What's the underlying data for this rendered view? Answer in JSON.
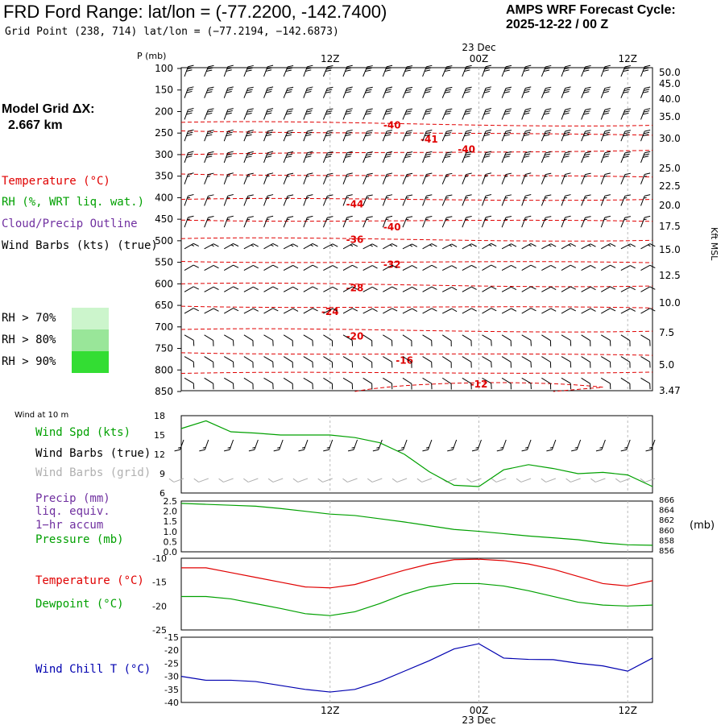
{
  "header": {
    "title": "FRD Ford Range:  lat/lon = (-77.2200, -142.7400)",
    "grid_point": "Grid Point (238, 714) lat/lon = (−77.2194, −142.6873)",
    "cycle_label": "AMPS WRF Forecast Cycle:",
    "cycle_value": "2025-12-22 / 00  Z"
  },
  "model_grid": {
    "label": "Model Grid ΔX:",
    "value": "2.667 km"
  },
  "legend_left": {
    "temperature": "Temperature (°C)",
    "rh": "RH (%, WRT liq. wat.)",
    "cloud": "Cloud/Precip Outline",
    "wind": "Wind Barbs (kts) (true)",
    "rh70": "RH > 70%",
    "rh80": "RH > 80%",
    "rh90": "RH > 90%"
  },
  "colors": {
    "temperature": "#e00000",
    "rh": "#00a000",
    "cloud": "#7030a0",
    "wind": "#000000",
    "grid_wind": "#b0b0b0",
    "wind_chill": "#0000b0",
    "rh70": "#ccf5cc",
    "rh80": "#99e699",
    "rh90": "#33dd33"
  },
  "time_axis": {
    "ticks": [
      "12Z",
      "00Z",
      "12Z"
    ],
    "date_label": "23 Dec"
  },
  "chart_data": [
    {
      "type": "line",
      "name": "cross-section",
      "ylabel": "P (mb)",
      "y2label": "Kft MSL",
      "pressure_ticks": [
        "100",
        "150",
        "200",
        "250",
        "300",
        "350",
        "400",
        "450",
        "500",
        "550",
        "600",
        "650",
        "700",
        "750",
        "800",
        "850"
      ],
      "height_ticks": [
        "50.0",
        "45.0",
        "40.0",
        "35.0",
        "30.0",
        "25.0",
        "22.5",
        "20.0",
        "17.5",
        "15.0",
        "12.5",
        "10.0",
        "7.5",
        "5.0",
        "3.47"
      ],
      "pressure_levels": [
        100,
        150,
        200,
        250,
        300,
        350,
        400,
        450,
        500,
        550,
        600,
        650,
        700,
        750,
        800,
        850
      ],
      "isotherm_labels": [
        {
          "text": "-40",
          "hour": 17,
          "p": 232
        },
        {
          "text": "-41",
          "hour": 20,
          "p": 265
        },
        {
          "text": "-40",
          "hour": 23,
          "p": 288
        },
        {
          "text": "-44",
          "hour": 14,
          "p": 415
        },
        {
          "text": "-40",
          "hour": 17,
          "p": 468
        },
        {
          "text": "-36",
          "hour": 14,
          "p": 497
        },
        {
          "text": "-32",
          "hour": 17,
          "p": 555
        },
        {
          "text": "-28",
          "hour": 14,
          "p": 610
        },
        {
          "text": "-24",
          "hour": 12,
          "p": 665
        },
        {
          "text": "-20",
          "hour": 14,
          "p": 722
        },
        {
          "text": "-16",
          "hour": 18,
          "p": 778
        },
        {
          "text": "-12",
          "hour": 24,
          "p": 833
        }
      ]
    },
    {
      "type": "line",
      "name": "wind10m",
      "label_small": "Wind at 10 m",
      "labels": {
        "speed": "Wind Spd (kts)",
        "barbs_true": "Wind Barbs (true)",
        "barbs_grid": "Wind Barbs (grid)"
      },
      "y_ticks": [
        "18",
        "15",
        "12",
        "9",
        "6"
      ],
      "ylim": [
        6,
        18
      ],
      "x_hours": [
        0,
        2,
        4,
        6,
        8,
        10,
        12,
        14,
        16,
        18,
        20,
        22,
        24,
        26,
        28,
        30,
        32,
        34,
        36,
        38
      ],
      "speed_kts": [
        16,
        17.2,
        15.5,
        15.3,
        15,
        15,
        15,
        14.6,
        13.8,
        12,
        9.3,
        7.2,
        7,
        9.6,
        10.4,
        9.8,
        9,
        9.2,
        8.8,
        7
      ],
      "barb_speed_kts": [
        15,
        15,
        15,
        15,
        15,
        15,
        15,
        15,
        15,
        15,
        15,
        15,
        15,
        15,
        15,
        15,
        15,
        15,
        15,
        15
      ]
    },
    {
      "type": "line",
      "name": "precip-pressure",
      "labels": {
        "precip": "Precip (mm)",
        "liq": "liq. equiv.",
        "accum": "1−hr accum",
        "pressure": "Pressure (mb)"
      },
      "y_ticks": [
        "2.5",
        "2.0",
        "1.5",
        "1.0",
        "0.5",
        "0.0"
      ],
      "y2_ticks": [
        "866",
        "864",
        "862",
        "860",
        "858",
        "856"
      ],
      "y2_unit": "(mb)",
      "ylim_mb": [
        855.6,
        866.5
      ],
      "x_hours": [
        0,
        2,
        4,
        6,
        8,
        10,
        12,
        14,
        16,
        18,
        20,
        22,
        24,
        26,
        28,
        30,
        32,
        34,
        36,
        38
      ],
      "pressure_mb": [
        866,
        865.8,
        865.6,
        865.4,
        864.9,
        864.3,
        863.7,
        863.4,
        862.7,
        862,
        861.2,
        860.4,
        860,
        859.5,
        859,
        858.6,
        858.2,
        857.5,
        857.1,
        857
      ]
    },
    {
      "type": "line",
      "name": "temperature",
      "labels": {
        "temp": "Temperature (°C)",
        "dew": "Dewpoint (°C)"
      },
      "y_ticks": [
        "-10",
        "-15",
        "-20",
        "-25"
      ],
      "ylim": [
        -25,
        -10
      ],
      "x_hours": [
        0,
        2,
        4,
        6,
        8,
        10,
        12,
        14,
        16,
        18,
        20,
        22,
        24,
        26,
        28,
        30,
        32,
        34,
        36,
        38
      ],
      "temperature_c": [
        -12,
        -12,
        -13,
        -14,
        -15,
        -16,
        -16.2,
        -15.5,
        -14,
        -12.5,
        -11.2,
        -10.3,
        -10.2,
        -10.5,
        -11.2,
        -12.3,
        -13.8,
        -15.3,
        -15.8,
        -14.7
      ],
      "dewpoint_c": [
        -18,
        -18,
        -18.5,
        -19.5,
        -20.5,
        -21.6,
        -22,
        -21.2,
        -19.5,
        -17.5,
        -16,
        -15.3,
        -15.3,
        -15.8,
        -16.8,
        -18,
        -19.2,
        -19.8,
        -20,
        -19.8
      ]
    },
    {
      "type": "line",
      "name": "windchill",
      "labels": {
        "chill": "Wind Chill T (°C)"
      },
      "y_ticks": [
        "-15",
        "-20",
        "-25",
        "-30",
        "-35",
        "-40"
      ],
      "ylim": [
        -40,
        -15
      ],
      "x_hours": [
        0,
        2,
        4,
        6,
        8,
        10,
        12,
        14,
        16,
        18,
        20,
        22,
        24,
        26,
        28,
        30,
        32,
        34,
        36,
        38
      ],
      "windchill_c": [
        -30,
        -31.5,
        -31.5,
        -32,
        -33.5,
        -35,
        -36,
        -35,
        -32,
        -28,
        -24,
        -19.5,
        -17.5,
        -23,
        -23.5,
        -23.6,
        -25,
        -26,
        -28,
        -23
      ]
    }
  ]
}
